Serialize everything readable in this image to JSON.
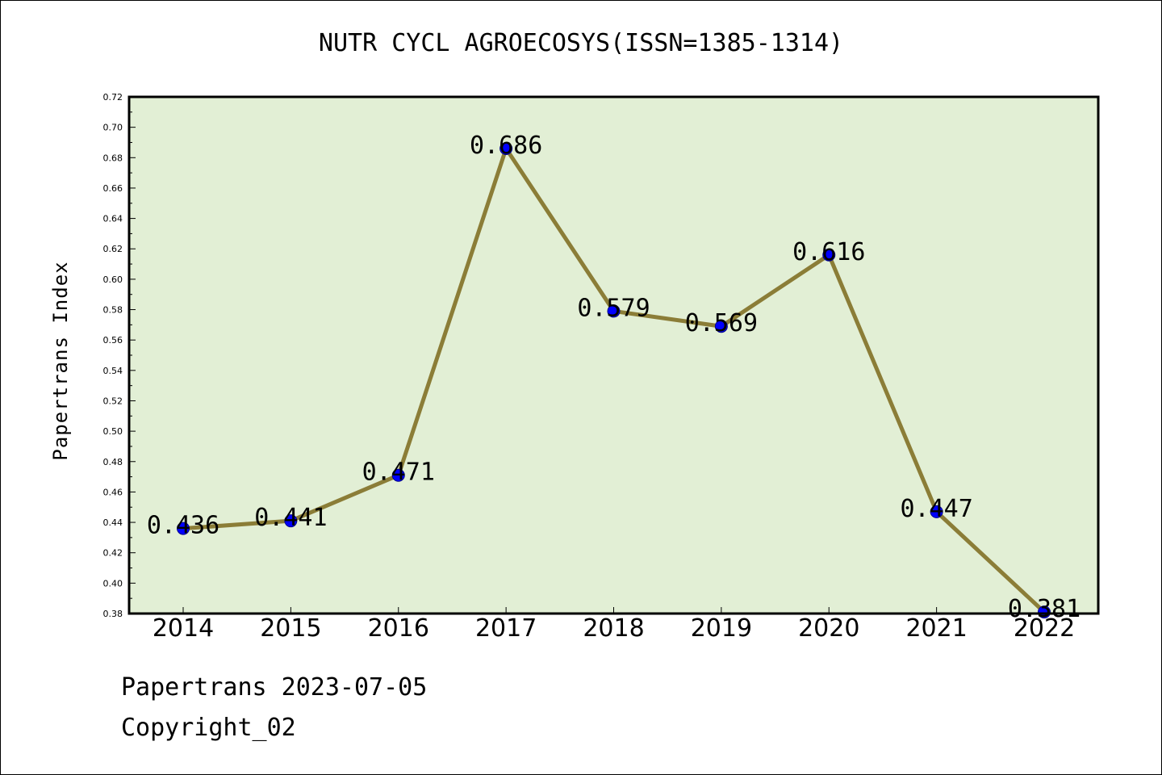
{
  "chart_data": {
    "type": "line",
    "title": "NUTR CYCL AGROECOSYS(ISSN=1385-1314)",
    "xlabel": "",
    "ylabel": "Papertrans Index",
    "categories": [
      "2014",
      "2015",
      "2016",
      "2017",
      "2018",
      "2019",
      "2020",
      "2021",
      "2022"
    ],
    "values": [
      0.436,
      0.441,
      0.471,
      0.686,
      0.579,
      0.569,
      0.616,
      0.447,
      0.381
    ],
    "data_labels": [
      "0.436",
      "0.441",
      "0.471",
      "0.686",
      "0.579",
      "0.569",
      "0.616",
      "0.447",
      "0.381"
    ],
    "ylim": [
      0.38,
      0.72
    ],
    "yticks": [
      "0.38",
      "0.40",
      "0.42",
      "0.44",
      "0.46",
      "0.48",
      "0.50",
      "0.52",
      "0.54",
      "0.56",
      "0.58",
      "0.60",
      "0.62",
      "0.64",
      "0.66",
      "0.68",
      "0.70",
      "0.72"
    ],
    "grid": false,
    "colors": {
      "plot_background": "#e2efd5",
      "line": "#8b7d37",
      "marker": "#0000ff"
    }
  },
  "footer": {
    "line1": "Papertrans 2023-07-05",
    "line2": "Copyright_02"
  }
}
